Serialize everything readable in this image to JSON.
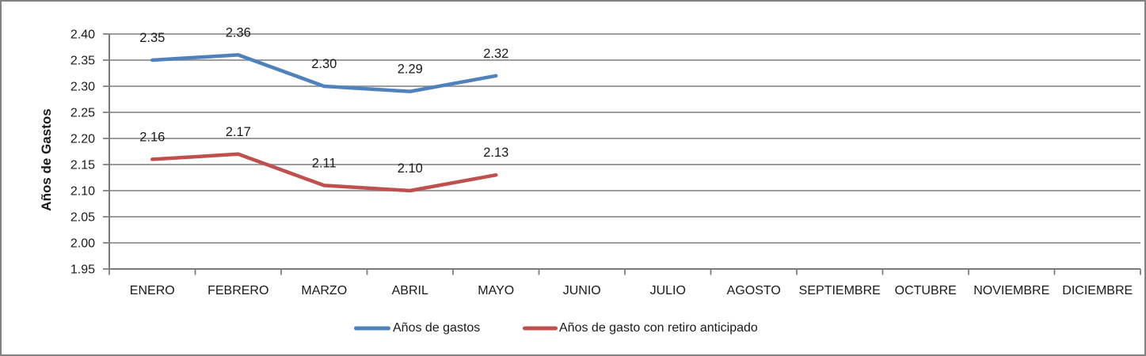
{
  "chart_data": {
    "type": "line",
    "title": "",
    "xlabel": "",
    "ylabel": "Años de Gastos",
    "ylim": [
      1.95,
      2.4
    ],
    "y_tick_labels": [
      "2.40",
      "2.35",
      "2.30",
      "2.25",
      "2.20",
      "2.15",
      "2.10",
      "2.05",
      "2.00",
      "1.95"
    ],
    "categories": [
      "ENERO",
      "FEBRERO",
      "MARZO",
      "ABRIL",
      "MAYO",
      "JUNIO",
      "JULIO",
      "AGOSTO",
      "SEPTIEMBRE",
      "OCTUBRE",
      "NOVIEMBRE",
      "DICIEMBRE"
    ],
    "grid": true,
    "legend_position": "bottom",
    "series": [
      {
        "name": "Años de gastos",
        "color": "#4F81BD",
        "values": [
          2.35,
          2.36,
          2.3,
          2.29,
          2.32
        ],
        "data_labels": [
          "2.35",
          "2.36",
          "2.30",
          "2.29",
          "2.32"
        ]
      },
      {
        "name": "Años de gasto con retiro anticipado",
        "color": "#C0504D",
        "values": [
          2.16,
          2.17,
          2.11,
          2.1,
          2.13
        ],
        "data_labels": [
          "2.16",
          "2.17",
          "2.11",
          "2.10",
          "2.13"
        ]
      }
    ]
  },
  "colors": {
    "background": "#FFFFFF",
    "border": "#828282",
    "gridline": "#8F8F8F",
    "axis": "#7A7A7A",
    "text": "#1A1A1A"
  }
}
